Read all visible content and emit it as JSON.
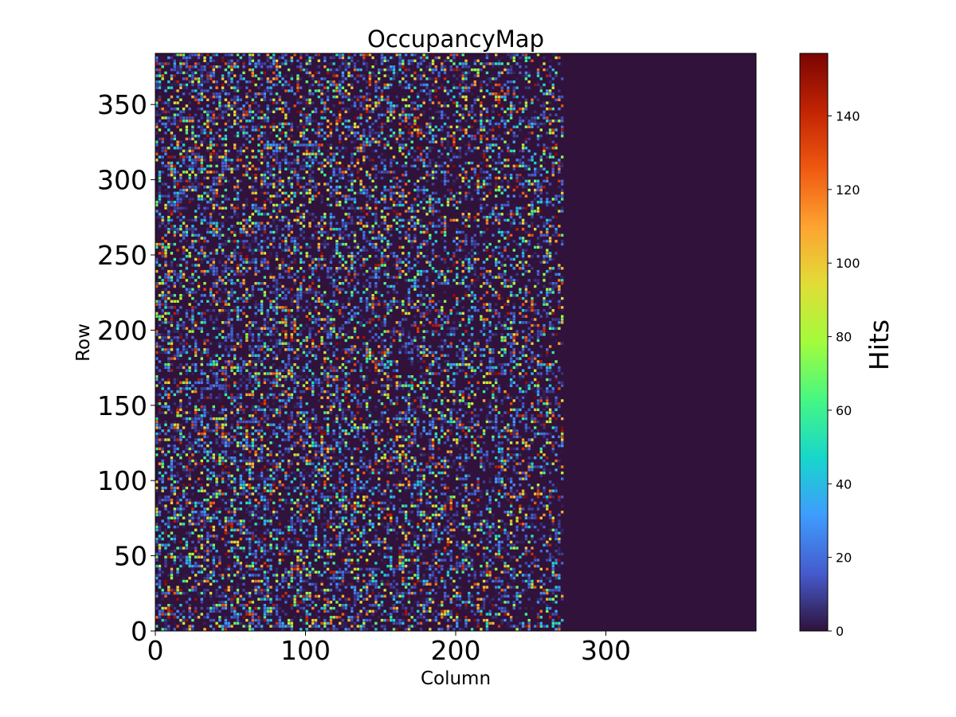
{
  "chart_data": {
    "type": "heatmap",
    "title": "OccupancyMap",
    "xlabel": "Column",
    "ylabel": "Row",
    "xlim": [
      0,
      400
    ],
    "ylim": [
      0,
      384
    ],
    "x_ticks": [
      0,
      100,
      200,
      300
    ],
    "x_tick_labels": [
      "0",
      "100",
      "200",
      "300"
    ],
    "y_ticks": [
      0,
      50,
      100,
      150,
      200,
      250,
      300,
      350
    ],
    "y_tick_labels": [
      "0",
      "50",
      "100",
      "150",
      "200",
      "250",
      "300",
      "350"
    ],
    "active_columns": [
      0,
      272
    ],
    "inactive_value": 0,
    "colormap": "turbo",
    "background_color": "#30123b",
    "colorbar": {
      "label": "Hits",
      "range": [
        0,
        157
      ],
      "ticks": [
        0,
        20,
        40,
        60,
        80,
        100,
        120,
        140
      ],
      "tick_labels": [
        "0",
        "20",
        "40",
        "60",
        "80",
        "100",
        "120",
        "140"
      ]
    }
  }
}
